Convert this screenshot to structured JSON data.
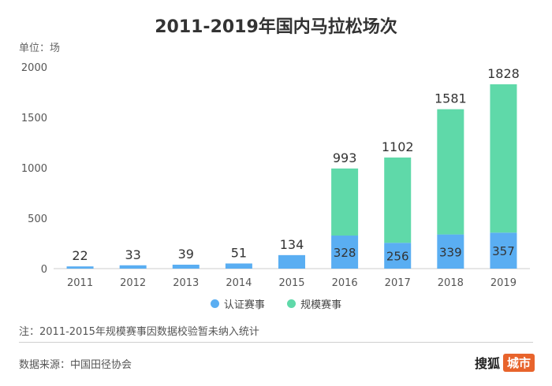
{
  "title": "2011-2019年国内马拉松场次",
  "unit_label": "单位：场",
  "note": "注：2011-2015年规模赛事因数据校验暂未纳入统计",
  "source": "数据来源：中国田径协会",
  "logo": {
    "brand": "搜狐",
    "badge": "城市"
  },
  "colors": {
    "certified": "#5aaef2",
    "scale": "#5fd9a9"
  },
  "chart_data": {
    "type": "bar",
    "stacked": true,
    "categories": [
      "2011",
      "2012",
      "2013",
      "2014",
      "2015",
      "2016",
      "2017",
      "2018",
      "2019"
    ],
    "series": [
      {
        "name": "认证赛事",
        "values": [
          22,
          33,
          39,
          51,
          134,
          328,
          256,
          339,
          357
        ]
      },
      {
        "name": "规模赛事",
        "values": [
          0,
          0,
          0,
          0,
          0,
          665,
          846,
          1242,
          1471
        ]
      }
    ],
    "totals": [
      22,
      33,
      39,
      51,
      134,
      993,
      1102,
      1581,
      1828
    ],
    "ylim": [
      0,
      2000
    ],
    "yticks": [
      0,
      500,
      1000,
      1500,
      2000
    ],
    "grid": false,
    "legend": "bottom"
  }
}
